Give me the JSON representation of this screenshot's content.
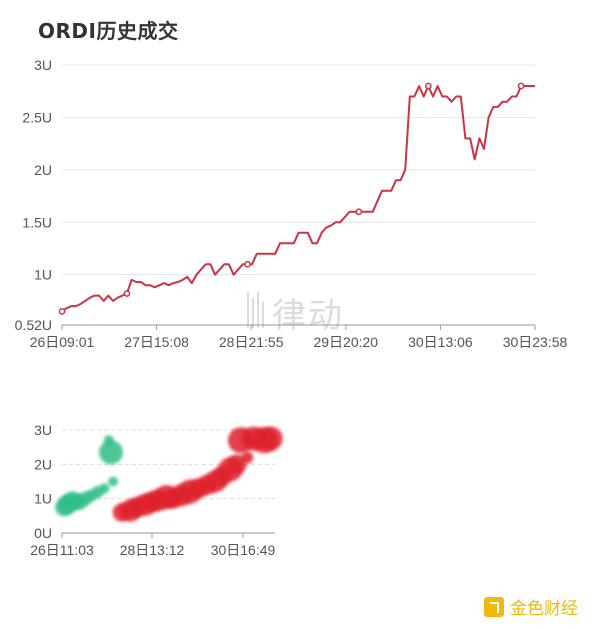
{
  "title": "ORDI历史成交",
  "watermark": "律动",
  "brand": "金色财经",
  "colors": {
    "line": "#cc3344",
    "green": "#2ebd85",
    "red": "#dd1f2a",
    "grid": "#e5e5e5",
    "axis": "#555555"
  },
  "chart_data": [
    {
      "type": "line",
      "title": "ORDI历史成交",
      "ylim": [
        0.52,
        3
      ],
      "yticks": [
        "0.52U",
        "1U",
        "1.5U",
        "2U",
        "2.5U",
        "3U"
      ],
      "ytick_values": [
        0.52,
        1,
        1.5,
        2,
        2.5,
        3
      ],
      "xticks": [
        "26日09:01",
        "27日15:08",
        "28日21:55",
        "29日20:20",
        "30日13:06",
        "30日23:58"
      ],
      "grid": true,
      "series": [
        {
          "values": [
            0.65,
            0.68,
            0.7,
            0.7,
            0.72,
            0.75,
            0.78,
            0.8,
            0.8,
            0.75,
            0.8,
            0.75,
            0.78,
            0.8,
            0.82,
            0.95,
            0.93,
            0.93,
            0.9,
            0.9,
            0.88,
            0.9,
            0.92,
            0.9,
            0.92,
            0.93,
            0.95,
            0.98,
            0.92,
            1.0,
            1.05,
            1.1,
            1.1,
            1.0,
            1.05,
            1.1,
            1.1,
            1.0,
            1.05,
            1.1,
            1.1,
            1.1,
            1.2,
            1.2,
            1.2,
            1.2,
            1.2,
            1.3,
            1.3,
            1.3,
            1.3,
            1.4,
            1.4,
            1.4,
            1.3,
            1.3,
            1.4,
            1.45,
            1.47,
            1.5,
            1.5,
            1.55,
            1.6,
            1.6,
            1.6,
            1.6,
            1.6,
            1.6,
            1.7,
            1.8,
            1.8,
            1.8,
            1.9,
            1.9,
            2.0,
            2.7,
            2.7,
            2.8,
            2.7,
            2.8,
            2.7,
            2.8,
            2.7,
            2.7,
            2.65,
            2.7,
            2.7,
            2.3,
            2.3,
            2.1,
            2.3,
            2.2,
            2.5,
            2.6,
            2.6,
            2.65,
            2.65,
            2.7,
            2.7,
            2.8,
            2.8,
            2.8,
            2.8
          ],
          "markers": [
            0,
            14,
            40,
            64,
            79,
            99
          ]
        }
      ]
    },
    {
      "type": "scatter",
      "ylim": [
        0,
        3
      ],
      "yticks": [
        "0U",
        "1U",
        "2U",
        "3U"
      ],
      "ytick_values": [
        0,
        1,
        2,
        3
      ],
      "xticks": [
        "26日11:03",
        "28日13:12",
        "30日16:49"
      ],
      "grid": true,
      "series": [
        {
          "color": "#2ebd85",
          "points": [
            [
              0.01,
              0.75,
              9
            ],
            [
              0.03,
              0.85,
              10
            ],
            [
              0.05,
              0.95,
              9
            ],
            [
              0.08,
              0.9,
              8
            ],
            [
              0.11,
              1.0,
              7
            ],
            [
              0.14,
              1.1,
              6
            ],
            [
              0.17,
              1.2,
              6
            ],
            [
              0.2,
              1.3,
              5
            ],
            [
              0.24,
              1.5,
              5
            ],
            [
              0.23,
              2.35,
              12
            ],
            [
              0.22,
              2.7,
              5
            ]
          ]
        },
        {
          "color": "#dd1f2a",
          "points": [
            [
              0.28,
              0.6,
              9
            ],
            [
              0.32,
              0.65,
              11
            ],
            [
              0.35,
              0.75,
              10
            ],
            [
              0.39,
              0.82,
              11
            ],
            [
              0.42,
              0.9,
              10
            ],
            [
              0.45,
              0.95,
              11
            ],
            [
              0.49,
              1.05,
              12
            ],
            [
              0.52,
              1.0,
              10
            ],
            [
              0.56,
              1.1,
              11
            ],
            [
              0.6,
              1.2,
              12
            ],
            [
              0.64,
              1.3,
              10
            ],
            [
              0.68,
              1.4,
              10
            ],
            [
              0.72,
              1.5,
              11
            ],
            [
              0.75,
              1.65,
              10
            ],
            [
              0.79,
              1.85,
              12
            ],
            [
              0.82,
              2.0,
              10
            ],
            [
              0.87,
              2.2,
              6
            ],
            [
              0.84,
              2.7,
              13
            ],
            [
              0.9,
              2.75,
              12
            ],
            [
              0.95,
              2.7,
              13
            ],
            [
              0.98,
              2.75,
              12
            ]
          ]
        }
      ]
    }
  ]
}
